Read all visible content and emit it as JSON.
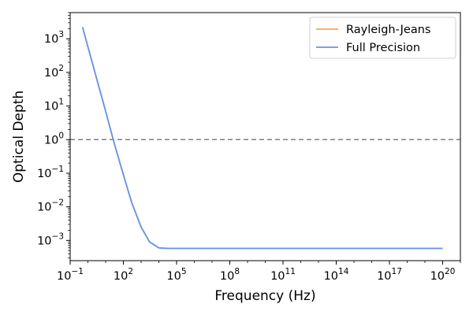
{
  "chart_data": {
    "type": "line",
    "title": "",
    "xlabel": "Frequency (Hz)",
    "ylabel": "Optical Depth",
    "xscale": "log",
    "yscale": "log",
    "xlim": [
      0.1,
      1e+21
    ],
    "ylim": [
      0.00025,
      6000
    ],
    "grid": false,
    "legend_position": "top-right",
    "x_ticks": [
      {
        "base": "10",
        "exp": "−1",
        "value": 0.1
      },
      {
        "base": "10",
        "exp": "2",
        "value": 100
      },
      {
        "base": "10",
        "exp": "5",
        "value": 100000
      },
      {
        "base": "10",
        "exp": "8",
        "value": 100000000.0
      },
      {
        "base": "10",
        "exp": "11",
        "value": 100000000000.0
      },
      {
        "base": "10",
        "exp": "14",
        "value": 100000000000000.0
      },
      {
        "base": "10",
        "exp": "17",
        "value": 1e+17
      },
      {
        "base": "10",
        "exp": "20",
        "value": 1e+20
      }
    ],
    "y_ticks": [
      {
        "base": "10",
        "exp": "−3",
        "value": 0.001
      },
      {
        "base": "10",
        "exp": "−2",
        "value": 0.01
      },
      {
        "base": "10",
        "exp": "−1",
        "value": 0.1
      },
      {
        "base": "10",
        "exp": "0",
        "value": 1
      },
      {
        "base": "10",
        "exp": "1",
        "value": 10
      },
      {
        "base": "10",
        "exp": "2",
        "value": 100
      },
      {
        "base": "10",
        "exp": "3",
        "value": 1000
      }
    ],
    "reference_line": {
      "y": 1,
      "style": "dashed",
      "color": "#808080"
    },
    "series": [
      {
        "name": "Rayleigh-Jeans",
        "color": "#f4a460",
        "x": [
          0.5,
          1,
          3,
          10,
          30,
          100,
          300,
          1000,
          3000,
          10000,
          30000,
          100000,
          1000000.0,
          100000000.0,
          10000000000.0,
          1000000000000.0,
          100000000000000.0,
          1e+16,
          1e+18,
          1e+20
        ],
        "y": [
          2200,
          580,
          70,
          7,
          0.8,
          0.09,
          0.013,
          0.0025,
          0.0009,
          0.0006,
          0.00058,
          0.00058,
          0.00058,
          0.00058,
          0.00058,
          0.00058,
          0.00058,
          0.00058,
          0.00058,
          0.00058
        ]
      },
      {
        "name": "Full Precision",
        "color": "#6495ed",
        "x": [
          0.5,
          1,
          3,
          10,
          30,
          100,
          300,
          1000,
          3000,
          10000,
          30000,
          100000,
          1000000.0,
          100000000.0,
          10000000000.0,
          1000000000000.0,
          100000000000000.0,
          1e+16,
          1e+18,
          1e+20
        ],
        "y": [
          2200,
          580,
          70,
          7,
          0.8,
          0.09,
          0.013,
          0.0025,
          0.0009,
          0.0006,
          0.00058,
          0.00058,
          0.00058,
          0.00058,
          0.00058,
          0.00058,
          0.00058,
          0.00058,
          0.00058,
          0.00058
        ]
      }
    ]
  }
}
